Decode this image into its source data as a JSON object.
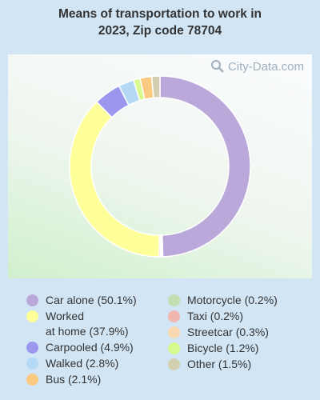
{
  "title_line1": "Means of transportation to work in",
  "title_line2": "2023, Zip code 78704",
  "watermark": "City-Data.com",
  "chart_data": {
    "type": "pie",
    "title": "Means of transportation to work in 2023, Zip code 78704",
    "donut": true,
    "slices": [
      {
        "label": "Car alone (50.1%)",
        "name": "Car alone",
        "value": 50.1,
        "color": "#bba8db"
      },
      {
        "label": "Motorcycle (0.2%)",
        "name": "Motorcycle",
        "value": 0.2,
        "color": "#c3deb0"
      },
      {
        "label": "Taxi (0.2%)",
        "name": "Taxi",
        "value": 0.2,
        "color": "#f1b6b0"
      },
      {
        "label": "Streetcar (0.3%)",
        "name": "Streetcar",
        "value": 0.3,
        "color": "#f8d8b0"
      },
      {
        "label": "Worked\nat home (37.9%)",
        "name": "Worked at home",
        "value": 37.9,
        "color": "#ffff99"
      },
      {
        "label": "Carpooled (4.9%)",
        "name": "Carpooled",
        "value": 4.9,
        "color": "#9b97ee"
      },
      {
        "label": "Walked (2.8%)",
        "name": "Walked",
        "value": 2.8,
        "color": "#b4d9f7"
      },
      {
        "label": "Bicycle (1.2%)",
        "name": "Bicycle",
        "value": 1.2,
        "color": "#d7f98d"
      },
      {
        "label": "Bus (2.1%)",
        "name": "Bus",
        "value": 2.1,
        "color": "#fbc97f"
      },
      {
        "label": "Other (1.5%)",
        "name": "Other",
        "value": 1.5,
        "color": "#d4cfb0"
      }
    ],
    "legend_left": [
      0,
      4,
      5,
      6,
      8
    ],
    "legend_right": [
      1,
      2,
      3,
      7,
      9
    ]
  }
}
